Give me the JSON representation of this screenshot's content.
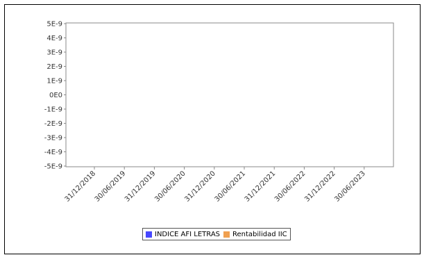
{
  "chart_data": {
    "type": "line",
    "title": "",
    "xlabel": "",
    "ylabel": "",
    "yticks": [
      "5E-9",
      "4E-9",
      "3E-9",
      "2E-9",
      "1E-9",
      "0E0",
      "-1E-9",
      "-2E-9",
      "-3E-9",
      "-4E-9",
      "-5E-9"
    ],
    "ylim": [
      -5e-09,
      5e-09
    ],
    "xticks": [
      "31/12/2018",
      "30/06/2019",
      "31/12/2019",
      "30/06/2020",
      "31/12/2020",
      "30/06/2021",
      "31/12/2021",
      "30/06/2022",
      "31/12/2022",
      "30/06/2023"
    ],
    "grid": false,
    "legend_position": "bottom",
    "series": [
      {
        "name": "INDICE AFI LETRAS",
        "color": "#4747ff",
        "values": []
      },
      {
        "name": "Rentabilidad IIC",
        "color": "#f0a050",
        "values": []
      }
    ]
  }
}
